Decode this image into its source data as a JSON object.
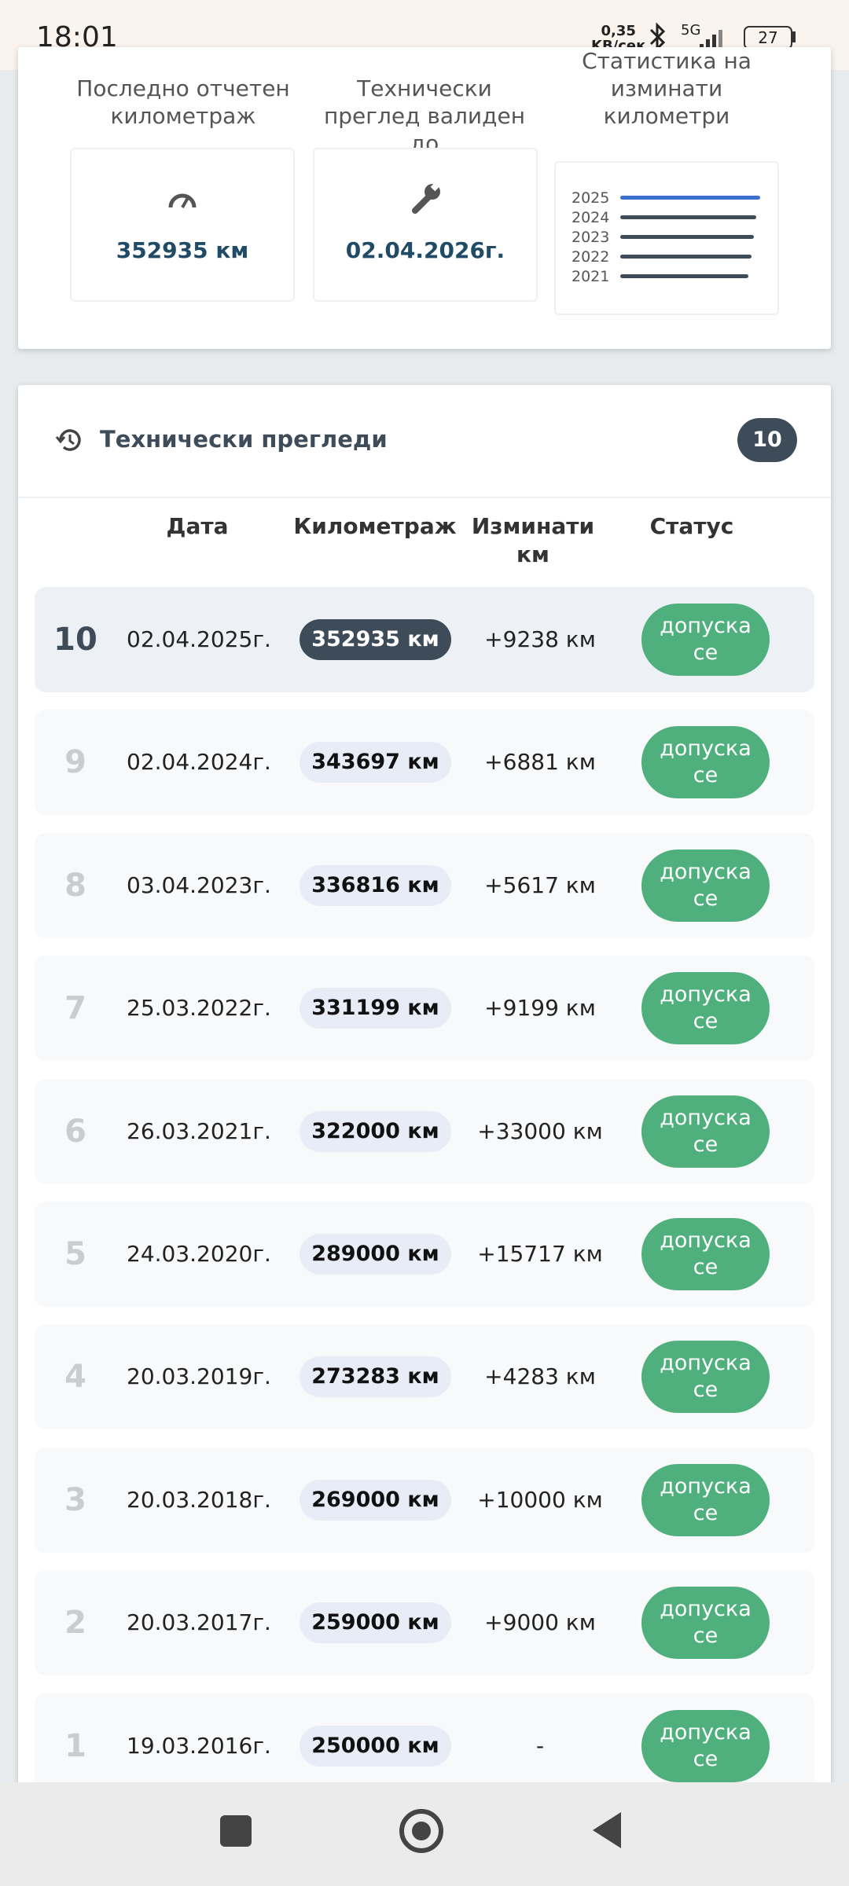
{
  "status_bar": {
    "time": "18:01",
    "speed": "0,35",
    "speed_unit": "KB/сек",
    "network": "5G",
    "battery": "27"
  },
  "summary": {
    "mileage": {
      "label": "Последно отчетен километраж",
      "value": "352935 км"
    },
    "inspection": {
      "label": "Технически преглед валиден до",
      "value": "02.04.2026г."
    },
    "statistics": {
      "label": "Статистика на изминати километри",
      "years": [
        "2025",
        "2024",
        "2023",
        "2022",
        "2021"
      ]
    }
  },
  "inspections": {
    "title": "Технически прегледи",
    "count": "10",
    "columns": [
      "Дата",
      "Километраж",
      "Изминати км",
      "Статус"
    ],
    "rows": [
      {
        "number": "10",
        "date": "02.04.2025г.",
        "mileage": "352935 км",
        "difference": "+9238 км",
        "status": "допуска се"
      },
      {
        "number": "9",
        "date": "02.04.2024г.",
        "mileage": "343697 км",
        "difference": "+6881 км",
        "status": "допуска се"
      },
      {
        "number": "8",
        "date": "03.04.2023г.",
        "mileage": "336816 км",
        "difference": "+5617 км",
        "status": "допуска се"
      },
      {
        "number": "7",
        "date": "25.03.2022г.",
        "mileage": "331199 км",
        "difference": "+9199 км",
        "status": "допуска се"
      },
      {
        "number": "6",
        "date": "26.03.2021г.",
        "mileage": "322000 км",
        "difference": "+33000 км",
        "status": "допуска се"
      },
      {
        "number": "5",
        "date": "24.03.2020г.",
        "mileage": "289000 км",
        "difference": "+15717 км",
        "status": "допуска се"
      },
      {
        "number": "4",
        "date": "20.03.2019г.",
        "mileage": "273283 км",
        "difference": "+4283 км",
        "status": "допуска се"
      },
      {
        "number": "3",
        "date": "20.03.2018г.",
        "mileage": "269000 км",
        "difference": "+10000 км",
        "status": "допуска се"
      },
      {
        "number": "2",
        "date": "20.03.2017г.",
        "mileage": "259000 км",
        "difference": "+9000 км",
        "status": "допуска се"
      },
      {
        "number": "1",
        "date": "19.03.2016г.",
        "mileage": "250000 км",
        "difference": "-",
        "status": "допуска се"
      }
    ]
  }
}
